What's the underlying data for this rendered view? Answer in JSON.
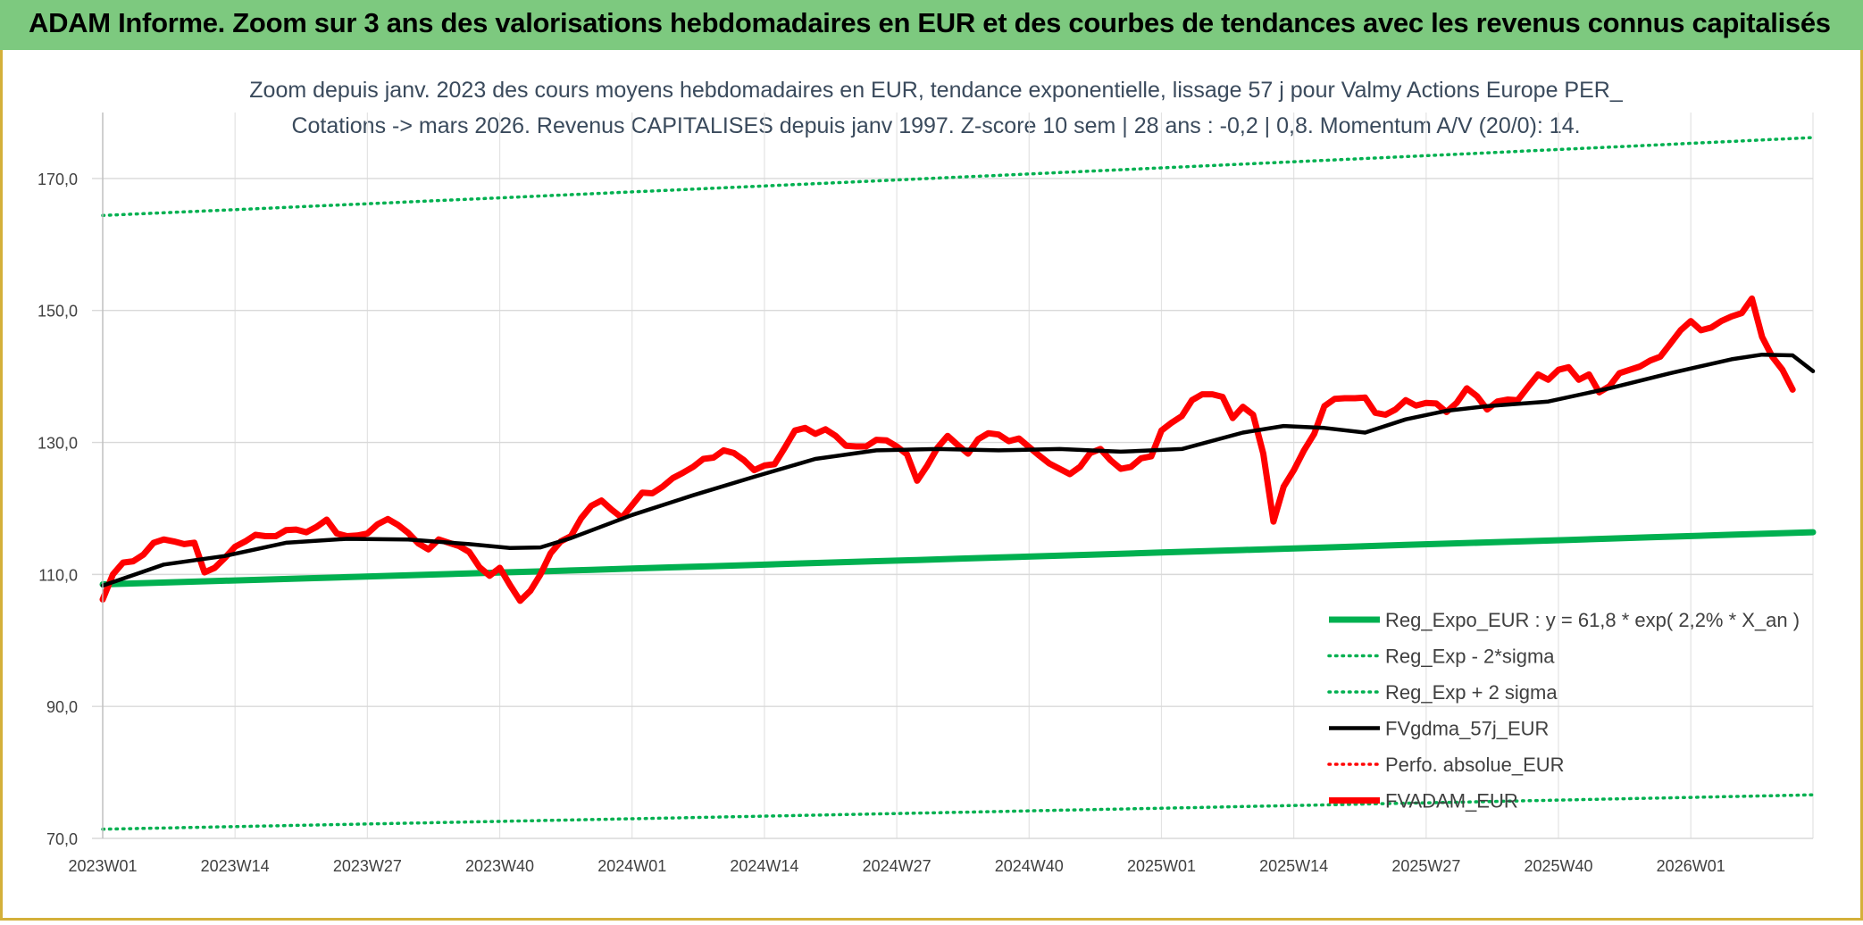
{
  "header": {
    "title": "ADAM Informe. Zoom sur 3 ans des valorisations hebdomadaires en EUR et des courbes de tendances avec les revenus connus capitalisés"
  },
  "chart_data": {
    "type": "line",
    "title_line1": "Zoom depuis janv. 2023 des cours moyens hebdomadaires en EUR, tendance exponentielle, lissage 57 j pour Valmy Actions Europe PER_",
    "title_line2": "Cotations -> mars 2026. Revenus CAPITALISES depuis janv 1997. Z-score 10 sem | 28 ans : -0,2 | 0,8. Momentum A/V (20/0): 14.",
    "ylim": [
      70,
      180
    ],
    "yticks": [
      70,
      90,
      110,
      130,
      150,
      170
    ],
    "ytick_labels": [
      "70,0",
      "90,0",
      "110,0",
      "130,0",
      "150,0",
      "170,0"
    ],
    "x_count": 169,
    "xtick_labels": [
      "2023W01",
      "2023W14",
      "2023W27",
      "2023W40",
      "2024W01",
      "2024W14",
      "2024W27",
      "2024W40",
      "2025W01",
      "2025W14",
      "2025W27",
      "2025W40",
      "2026W01"
    ],
    "grid": true,
    "legend_position": "bottom-right",
    "series": [
      {
        "name": "Reg_Expo_EUR : y = 61,8 * exp( 2,2% *  X_an )",
        "color": "#00b050",
        "style": "solid-thick",
        "start": 108.5,
        "end": 116.4
      },
      {
        "name": "Reg_Exp - 2*sigma",
        "color": "#00b050",
        "style": "dotted",
        "start": 71.4,
        "end": 76.6
      },
      {
        "name": "Reg_Exp + 2 sigma",
        "color": "#00b050",
        "style": "dotted",
        "start": 164.4,
        "end": 176.2
      },
      {
        "name": "FVgdma_57j_EUR",
        "color": "#000000",
        "style": "solid",
        "points": [
          [
            0,
            108.3
          ],
          [
            6,
            111.5
          ],
          [
            12,
            112.8
          ],
          [
            18,
            114.8
          ],
          [
            24,
            115.4
          ],
          [
            30,
            115.3
          ],
          [
            36,
            114.6
          ],
          [
            40,
            114
          ],
          [
            43,
            114.1
          ],
          [
            46,
            115.5
          ],
          [
            52,
            119
          ],
          [
            58,
            122
          ],
          [
            64,
            124.8
          ],
          [
            70,
            127.5
          ],
          [
            76,
            128.8
          ],
          [
            82,
            129
          ],
          [
            88,
            128.8
          ],
          [
            94,
            129
          ],
          [
            100,
            128.6
          ],
          [
            106,
            129
          ],
          [
            112,
            131.5
          ],
          [
            116,
            132.5
          ],
          [
            120,
            132.2
          ],
          [
            124,
            131.5
          ],
          [
            128,
            133.5
          ],
          [
            132,
            134.8
          ],
          [
            136,
            135.5
          ],
          [
            142,
            136.2
          ],
          [
            148,
            138.2
          ],
          [
            154,
            140.5
          ],
          [
            160,
            142.6
          ],
          [
            163,
            143.3
          ],
          [
            166,
            143.2
          ],
          [
            168,
            140.8
          ]
        ]
      },
      {
        "name": "Perfo. absolue_EUR",
        "color": "#ff0000",
        "style": "dotted"
      },
      {
        "name": "FVADAM_EUR",
        "color": "#ff0000",
        "style": "solid-thick",
        "points": [
          [
            0,
            106.2
          ],
          [
            1,
            110
          ],
          [
            2,
            111.8
          ],
          [
            3,
            112
          ],
          [
            4,
            113
          ],
          [
            5,
            114.8
          ],
          [
            6,
            115.3
          ],
          [
            7,
            115
          ],
          [
            8,
            114.6
          ],
          [
            9,
            114.8
          ],
          [
            10,
            110.3
          ],
          [
            11,
            111
          ],
          [
            12,
            112.5
          ],
          [
            13,
            114.2
          ],
          [
            14,
            115
          ],
          [
            15,
            116
          ],
          [
            16,
            115.8
          ],
          [
            17,
            115.8
          ],
          [
            18,
            116.7
          ],
          [
            19,
            116.8
          ],
          [
            20,
            116.4
          ],
          [
            21,
            117.2
          ],
          [
            22,
            118.3
          ],
          [
            23,
            116.2
          ],
          [
            24,
            115.8
          ],
          [
            25,
            115.9
          ],
          [
            26,
            116.2
          ],
          [
            27,
            117.6
          ],
          [
            28,
            118.4
          ],
          [
            29,
            117.5
          ],
          [
            30,
            116.3
          ],
          [
            31,
            114.7
          ],
          [
            32,
            113.8
          ],
          [
            33,
            115.3
          ],
          [
            34,
            114.8
          ],
          [
            35,
            114.3
          ],
          [
            36,
            113.4
          ],
          [
            37,
            111.1
          ],
          [
            38,
            109.8
          ],
          [
            39,
            111
          ],
          [
            40,
            108.4
          ],
          [
            41,
            106
          ],
          [
            42,
            107.5
          ],
          [
            43,
            110
          ],
          [
            44,
            113.2
          ],
          [
            45,
            115
          ],
          [
            46,
            115.8
          ],
          [
            47,
            118.5
          ],
          [
            48,
            120.4
          ],
          [
            49,
            121.2
          ],
          [
            50,
            119.8
          ],
          [
            51,
            118.6
          ],
          [
            52,
            120.5
          ],
          [
            53,
            122.4
          ],
          [
            54,
            122.3
          ],
          [
            55,
            123.3
          ],
          [
            56,
            124.6
          ],
          [
            57,
            125.4
          ],
          [
            58,
            126.3
          ],
          [
            59,
            127.5
          ],
          [
            60,
            127.7
          ],
          [
            61,
            128.8
          ],
          [
            62,
            128.4
          ],
          [
            63,
            127.3
          ],
          [
            64,
            125.8
          ],
          [
            65,
            126.5
          ],
          [
            66,
            126.7
          ],
          [
            67,
            129.2
          ],
          [
            68,
            131.8
          ],
          [
            69,
            132.2
          ],
          [
            70,
            131.3
          ],
          [
            71,
            132
          ],
          [
            72,
            131
          ],
          [
            73,
            129.5
          ],
          [
            74,
            129.4
          ],
          [
            75,
            129.4
          ],
          [
            76,
            130.4
          ],
          [
            77,
            130.3
          ],
          [
            78,
            129.4
          ],
          [
            79,
            128.2
          ],
          [
            80,
            124.2
          ],
          [
            81,
            126.5
          ],
          [
            82,
            129.2
          ],
          [
            83,
            131
          ],
          [
            84,
            129.6
          ],
          [
            85,
            128.3
          ],
          [
            86,
            130.5
          ],
          [
            87,
            131.4
          ],
          [
            88,
            131.2
          ],
          [
            89,
            130.2
          ],
          [
            90,
            130.6
          ],
          [
            91,
            129.3
          ],
          [
            92,
            128
          ],
          [
            93,
            126.8
          ],
          [
            94,
            126
          ],
          [
            95,
            125.2
          ],
          [
            96,
            126.3
          ],
          [
            97,
            128.4
          ],
          [
            98,
            129
          ],
          [
            99,
            127.3
          ],
          [
            100,
            126
          ],
          [
            101,
            126.3
          ],
          [
            102,
            127.6
          ],
          [
            103,
            127.9
          ],
          [
            104,
            131.8
          ],
          [
            105,
            133
          ],
          [
            106,
            134
          ],
          [
            107,
            136.4
          ],
          [
            108,
            137.3
          ],
          [
            109,
            137.3
          ],
          [
            110,
            136.9
          ],
          [
            111,
            133.7
          ],
          [
            112,
            135.4
          ],
          [
            113,
            134.2
          ],
          [
            114,
            128.3
          ],
          [
            115,
            118
          ],
          [
            116,
            123.3
          ],
          [
            117,
            125.8
          ],
          [
            118,
            128.8
          ],
          [
            119,
            131.3
          ],
          [
            120,
            135.5
          ],
          [
            121,
            136.6
          ],
          [
            122,
            136.7
          ],
          [
            123,
            136.7
          ],
          [
            124,
            136.8
          ],
          [
            125,
            134.5
          ],
          [
            126,
            134.2
          ],
          [
            127,
            135
          ],
          [
            128,
            136.4
          ],
          [
            129,
            135.6
          ],
          [
            130,
            136
          ],
          [
            131,
            135.9
          ],
          [
            132,
            134.6
          ],
          [
            133,
            136
          ],
          [
            134,
            138.2
          ],
          [
            135,
            137
          ],
          [
            136,
            135
          ],
          [
            137,
            136.2
          ],
          [
            138,
            136.5
          ],
          [
            139,
            136.4
          ],
          [
            140,
            138.4
          ],
          [
            141,
            140.3
          ],
          [
            142,
            139.5
          ],
          [
            143,
            141
          ],
          [
            144,
            141.4
          ],
          [
            145,
            139.5
          ],
          [
            146,
            140.3
          ],
          [
            147,
            137.6
          ],
          [
            148,
            138.5
          ],
          [
            149,
            140.5
          ],
          [
            150,
            141
          ],
          [
            151,
            141.5
          ],
          [
            152,
            142.4
          ],
          [
            153,
            143
          ],
          [
            154,
            145
          ],
          [
            155,
            147
          ],
          [
            156,
            148.4
          ],
          [
            157,
            147
          ],
          [
            158,
            147.4
          ],
          [
            159,
            148.4
          ],
          [
            160,
            149.1
          ],
          [
            161,
            149.6
          ],
          [
            162,
            151.8
          ],
          [
            163,
            146
          ],
          [
            164,
            143
          ],
          [
            165,
            141
          ],
          [
            166,
            138
          ]
        ]
      }
    ]
  }
}
